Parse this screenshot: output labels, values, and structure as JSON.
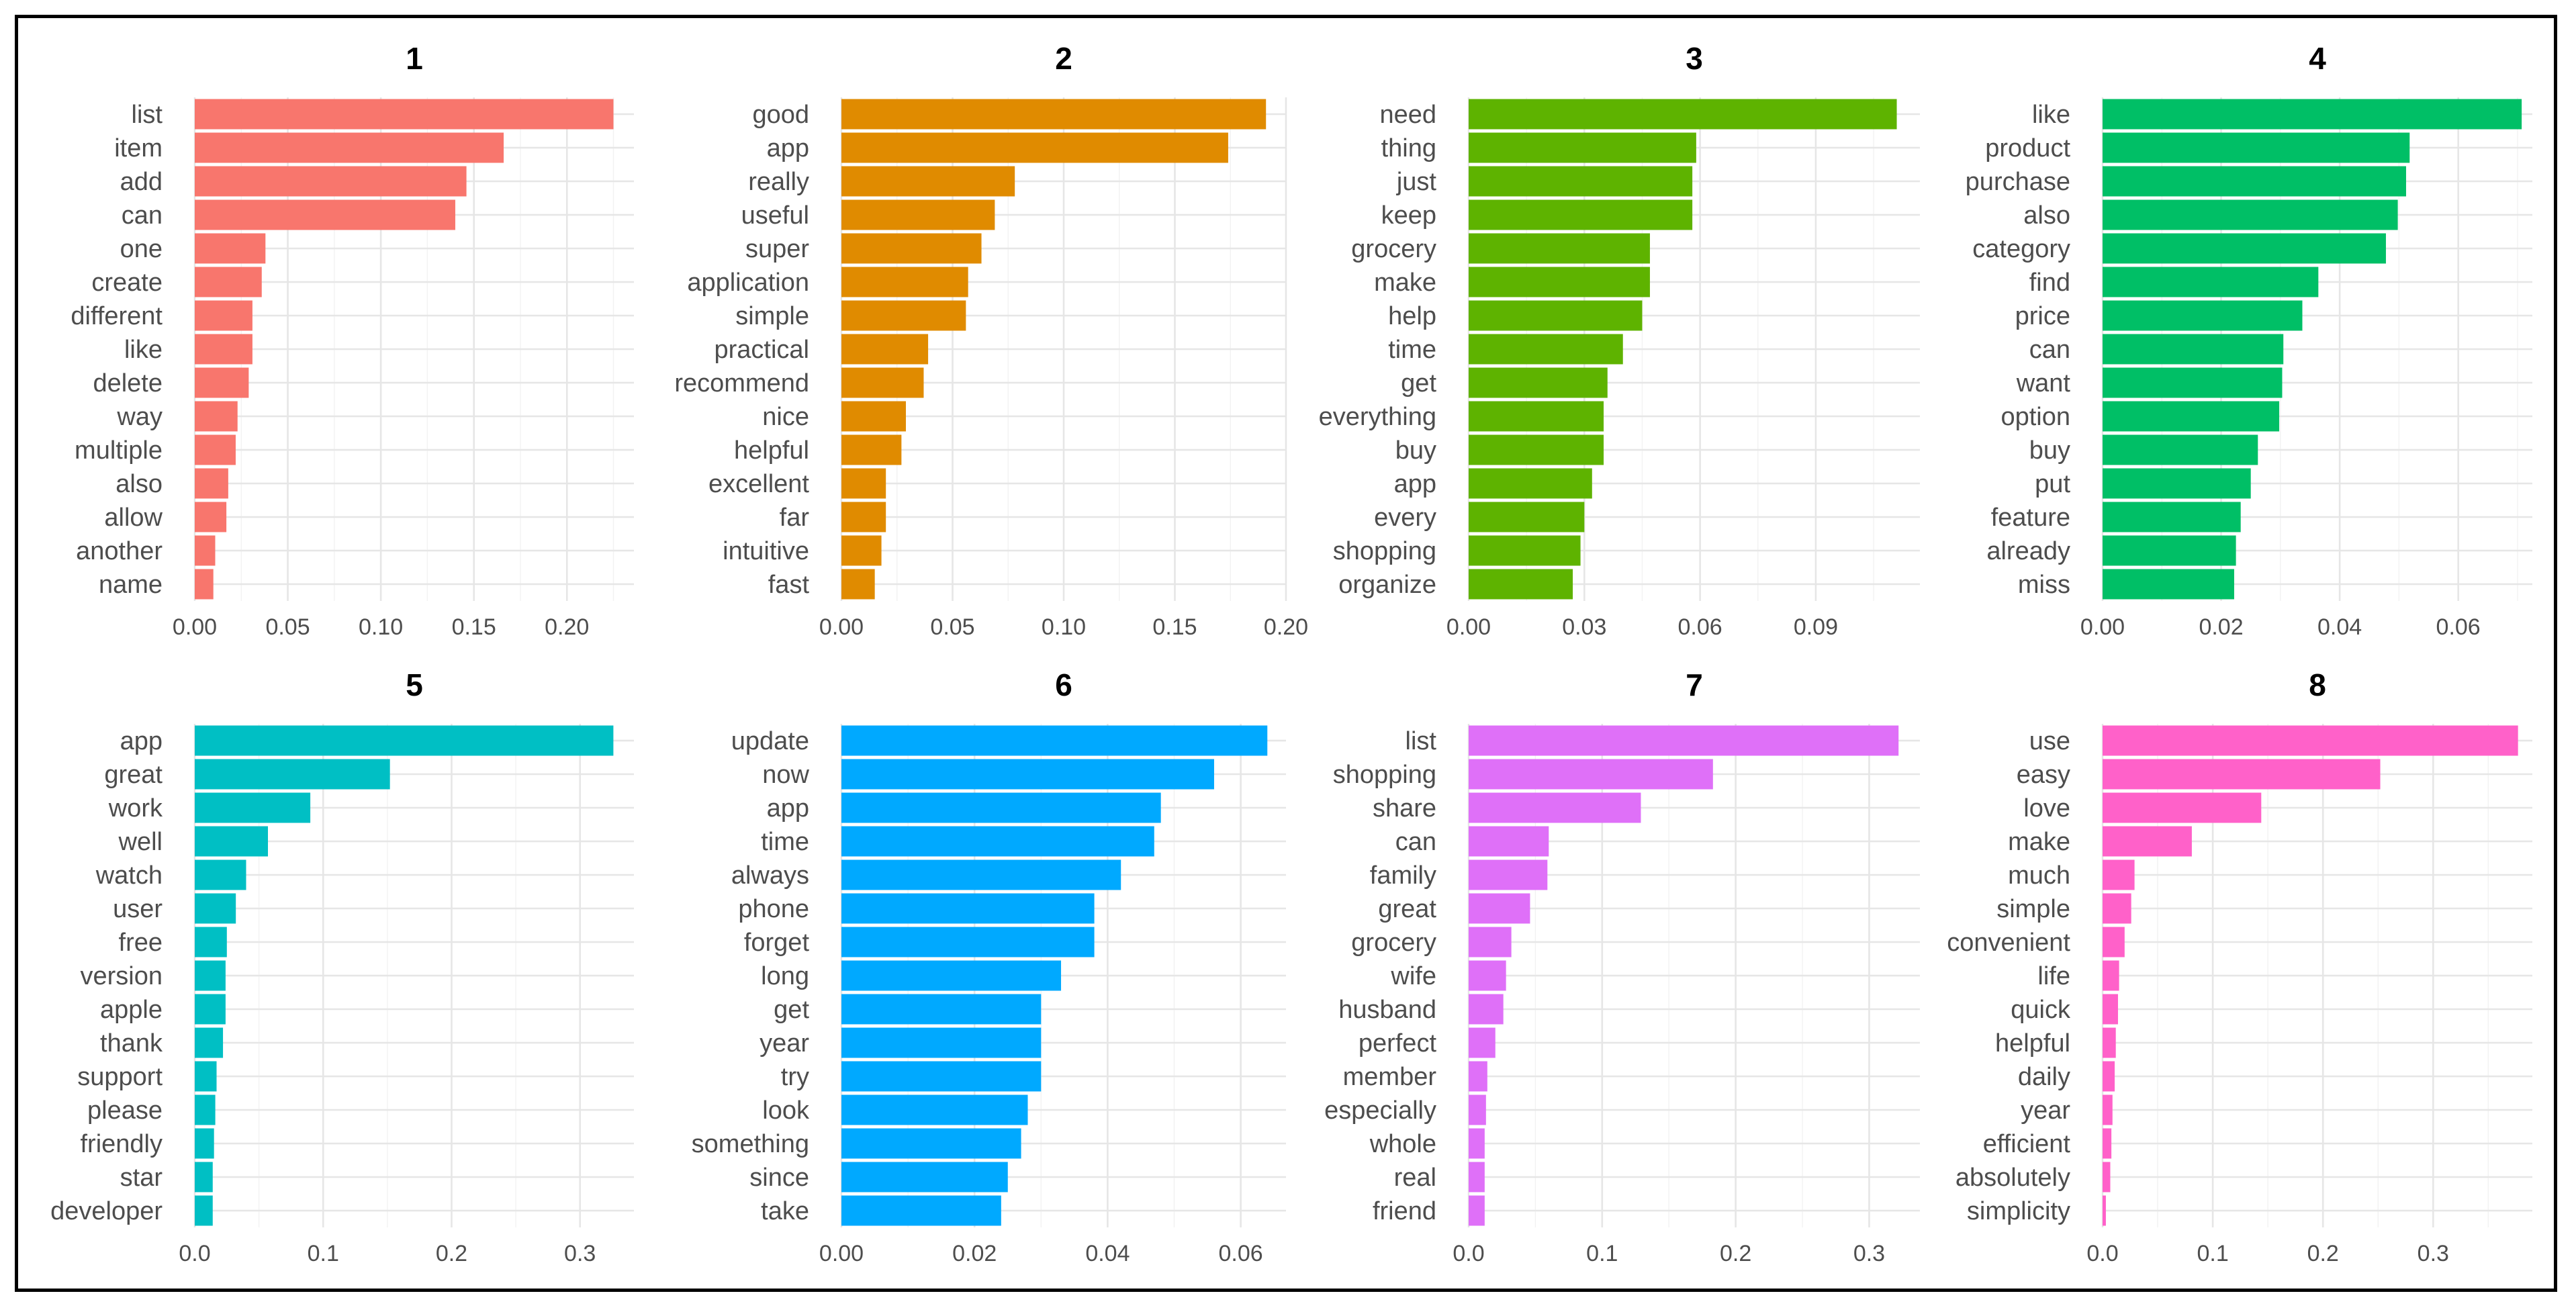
{
  "chart_data": [
    {
      "type": "bar",
      "orientation": "horizontal",
      "title": "1",
      "color": "#F8766D",
      "categories": [
        "list",
        "item",
        "add",
        "can",
        "one",
        "create",
        "different",
        "like",
        "delete",
        "way",
        "multiple",
        "also",
        "allow",
        "another",
        "name"
      ],
      "values": [
        0.225,
        0.166,
        0.146,
        0.14,
        0.038,
        0.036,
        0.031,
        0.031,
        0.029,
        0.023,
        0.022,
        0.018,
        0.017,
        0.011,
        0.01
      ],
      "xlim": [
        0,
        0.236
      ],
      "ticks": [
        0,
        0.05,
        0.1,
        0.15,
        0.2
      ],
      "tick_labels": [
        "0.00",
        "0.05",
        "0.10",
        "0.15",
        "0.20"
      ]
    },
    {
      "type": "bar",
      "orientation": "horizontal",
      "title": "2",
      "color": "#E08B00",
      "categories": [
        "good",
        "app",
        "really",
        "useful",
        "super",
        "application",
        "simple",
        "practical",
        "recommend",
        "nice",
        "helpful",
        "excellent",
        "far",
        "intuitive",
        "fast"
      ],
      "values": [
        0.191,
        0.174,
        0.078,
        0.069,
        0.063,
        0.057,
        0.056,
        0.039,
        0.037,
        0.029,
        0.027,
        0.02,
        0.02,
        0.018,
        0.015
      ],
      "xlim": [
        0,
        0.2
      ],
      "ticks": [
        0,
        0.05,
        0.1,
        0.15,
        0.2
      ],
      "tick_labels": [
        "0.00",
        "0.05",
        "0.10",
        "0.15",
        "0.20"
      ]
    },
    {
      "type": "bar",
      "orientation": "horizontal",
      "title": "3",
      "color": "#5EB300",
      "categories": [
        "need",
        "thing",
        "just",
        "keep",
        "grocery",
        "make",
        "help",
        "time",
        "get",
        "everything",
        "buy",
        "app",
        "every",
        "shopping",
        "organize"
      ],
      "values": [
        0.111,
        0.059,
        0.058,
        0.058,
        0.047,
        0.047,
        0.045,
        0.04,
        0.036,
        0.035,
        0.035,
        0.032,
        0.03,
        0.029,
        0.027
      ],
      "xlim": [
        0,
        0.117
      ],
      "ticks": [
        0,
        0.03,
        0.06,
        0.09
      ],
      "tick_labels": [
        "0.00",
        "0.03",
        "0.06",
        "0.09"
      ]
    },
    {
      "type": "bar",
      "orientation": "horizontal",
      "title": "4",
      "color": "#00BF66",
      "categories": [
        "like",
        "product",
        "purchase",
        "also",
        "category",
        "find",
        "price",
        "can",
        "want",
        "option",
        "buy",
        "put",
        "feature",
        "already",
        "miss"
      ],
      "values": [
        0.0707,
        0.0518,
        0.0512,
        0.0498,
        0.0478,
        0.0364,
        0.0337,
        0.0305,
        0.0303,
        0.0298,
        0.0262,
        0.025,
        0.0233,
        0.0225,
        0.0222
      ],
      "xlim": [
        0,
        0.0725
      ],
      "ticks": [
        0,
        0.02,
        0.04,
        0.06
      ],
      "tick_labels": [
        "0.00",
        "0.02",
        "0.04",
        "0.06"
      ]
    },
    {
      "type": "bar",
      "orientation": "horizontal",
      "title": "5",
      "color": "#00BFC4",
      "categories": [
        "app",
        "great",
        "work",
        "well",
        "watch",
        "user",
        "free",
        "version",
        "apple",
        "thank",
        "support",
        "please",
        "friendly",
        "star",
        "developer"
      ],
      "values": [
        0.326,
        0.152,
        0.09,
        0.057,
        0.04,
        0.032,
        0.025,
        0.024,
        0.024,
        0.022,
        0.017,
        0.016,
        0.015,
        0.014,
        0.014
      ],
      "xlim": [
        0,
        0.342
      ],
      "ticks": [
        0,
        0.1,
        0.2,
        0.3
      ],
      "tick_labels": [
        "0.0",
        "0.1",
        "0.2",
        "0.3"
      ]
    },
    {
      "type": "bar",
      "orientation": "horizontal",
      "title": "6",
      "color": "#00A9FF",
      "categories": [
        "update",
        "now",
        "app",
        "time",
        "always",
        "phone",
        "forget",
        "long",
        "get",
        "year",
        "try",
        "look",
        "something",
        "since",
        "take"
      ],
      "values": [
        0.064,
        0.056,
        0.048,
        0.047,
        0.042,
        0.038,
        0.038,
        0.033,
        0.03,
        0.03,
        0.03,
        0.028,
        0.027,
        0.025,
        0.024
      ],
      "xlim": [
        0,
        0.0668
      ],
      "ticks": [
        0,
        0.02,
        0.04,
        0.06
      ],
      "tick_labels": [
        "0.00",
        "0.02",
        "0.04",
        "0.06"
      ]
    },
    {
      "type": "bar",
      "orientation": "horizontal",
      "title": "7",
      "color": "#DF70F8",
      "categories": [
        "list",
        "shopping",
        "share",
        "can",
        "family",
        "great",
        "grocery",
        "wife",
        "husband",
        "perfect",
        "member",
        "especially",
        "whole",
        "real",
        "friend"
      ],
      "values": [
        0.322,
        0.183,
        0.129,
        0.06,
        0.059,
        0.046,
        0.032,
        0.028,
        0.026,
        0.02,
        0.014,
        0.013,
        0.012,
        0.012,
        0.012
      ],
      "xlim": [
        0,
        0.338
      ],
      "ticks": [
        0,
        0.1,
        0.2,
        0.3
      ],
      "tick_labels": [
        "0.0",
        "0.1",
        "0.2",
        "0.3"
      ]
    },
    {
      "type": "bar",
      "orientation": "horizontal",
      "title": "8",
      "color": "#FF61C9",
      "categories": [
        "use",
        "easy",
        "love",
        "make",
        "much",
        "simple",
        "convenient",
        "life",
        "quick",
        "helpful",
        "daily",
        "year",
        "efficient",
        "absolutely",
        "simplicity"
      ],
      "values": [
        0.377,
        0.252,
        0.144,
        0.081,
        0.029,
        0.026,
        0.02,
        0.015,
        0.014,
        0.012,
        0.011,
        0.009,
        0.008,
        0.007,
        0.003
      ],
      "xlim": [
        0,
        0.39
      ],
      "ticks": [
        0,
        0.1,
        0.2,
        0.3
      ],
      "tick_labels": [
        "0.0",
        "0.1",
        "0.2",
        "0.3"
      ]
    }
  ]
}
